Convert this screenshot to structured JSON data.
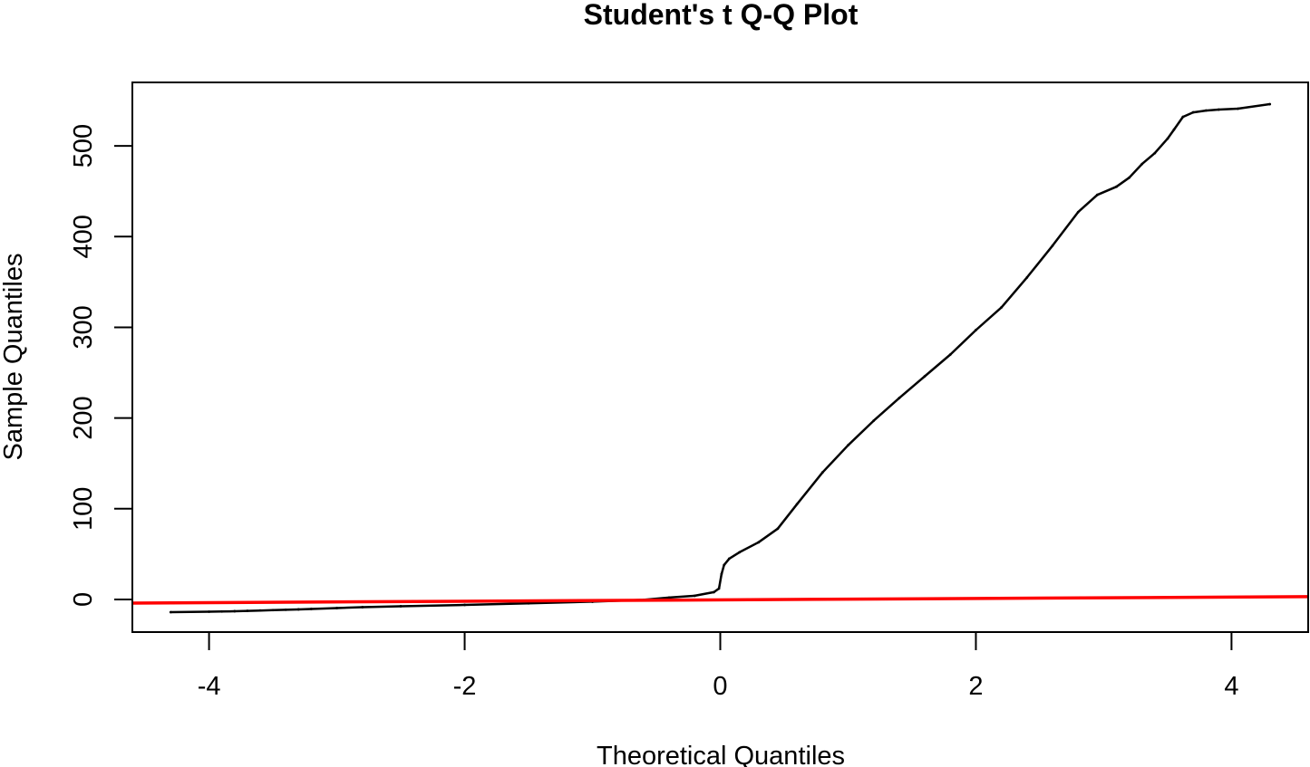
{
  "chart_data": {
    "type": "scatter",
    "title": "Student's t Q-Q Plot",
    "xlabel": "Theoretical Quantiles",
    "ylabel": "Sample Quantiles",
    "xlim": [
      -4.6,
      4.6
    ],
    "ylim": [
      -36,
      570
    ],
    "x_ticks": [
      -4,
      -2,
      0,
      2,
      4
    ],
    "x_tick_labels": [
      "-4",
      "-2",
      "0",
      "2",
      "4"
    ],
    "y_ticks": [
      0,
      100,
      200,
      300,
      400,
      500
    ],
    "y_tick_labels": [
      "0",
      "100",
      "200",
      "300",
      "400",
      "500"
    ],
    "grid": false,
    "series": [
      {
        "mark": "point",
        "color": "#000000",
        "x": [
          -4.3,
          -4.0,
          -3.9,
          -3.8,
          -3.7,
          -3.6,
          -3.5,
          -3.4,
          -3.3,
          -3.2,
          -3.0,
          -2.8,
          -2.5,
          -2.0,
          -1.5,
          -1.0,
          -0.6,
          -0.4,
          -0.2,
          -0.05,
          -0.01,
          0.01,
          0.03,
          0.07,
          0.15,
          0.3,
          0.45,
          0.6,
          0.8,
          1.0,
          1.2,
          1.4,
          1.6,
          1.8,
          2.0,
          2.2,
          2.4,
          2.6,
          2.8,
          2.95,
          3.1,
          3.2,
          3.3,
          3.4,
          3.5,
          3.55,
          3.62,
          3.7,
          3.8,
          3.9,
          4.05,
          4.3
        ],
        "y": [
          -14,
          -13.5,
          -13.3,
          -13,
          -12.6,
          -12.2,
          -11.8,
          -11.4,
          -11,
          -10.5,
          -9.5,
          -8.5,
          -7.5,
          -6,
          -4.3,
          -2.5,
          -0.5,
          2,
          4,
          8,
          12,
          28,
          38,
          45,
          52,
          63,
          78,
          105,
          140,
          170,
          197,
          222,
          246,
          270,
          297,
          322,
          355,
          390,
          427,
          446,
          455,
          465,
          480,
          492,
          508,
          518,
          532,
          537,
          539,
          540,
          541,
          546
        ]
      },
      {
        "mark": "line",
        "color": "#ff0000",
        "x": [
          -4.6,
          4.6
        ],
        "y": [
          -4.0,
          3.0
        ]
      }
    ]
  }
}
